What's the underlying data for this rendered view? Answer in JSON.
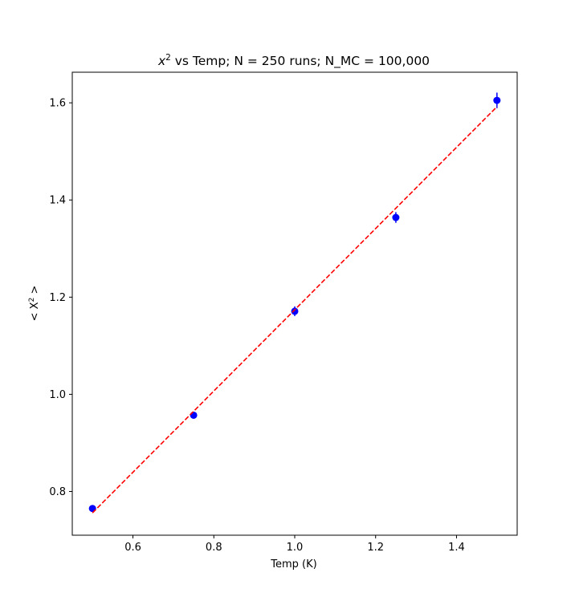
{
  "chart_data": {
    "type": "scatter",
    "title": {
      "prefix": "x",
      "superscript": "2",
      "suffix": " vs Temp; N = 250 runs; N_MC = 100,000"
    },
    "xlabel": "Temp (K)",
    "ylabel": {
      "prefix": "< X",
      "superscript": "2",
      "suffix": " >"
    },
    "xlim": [
      0.45,
      1.55
    ],
    "ylim": [
      0.71,
      1.663
    ],
    "x_ticks": [
      0.6,
      0.8,
      1.0,
      1.2,
      1.4
    ],
    "x_tick_labels": [
      "0.6",
      "0.8",
      "1.0",
      "1.2",
      "1.4"
    ],
    "y_ticks": [
      0.8,
      1.0,
      1.2,
      1.4,
      1.6
    ],
    "y_tick_labels": [
      "0.8",
      "1.0",
      "1.2",
      "1.4",
      "1.6"
    ],
    "grid": false,
    "series": [
      {
        "kind": "errorbar",
        "color": "#0000ff",
        "x": [
          0.5,
          0.75,
          1.0,
          1.25,
          1.5
        ],
        "y": [
          0.765,
          0.957,
          1.171,
          1.364,
          1.605
        ],
        "yerr": [
          0.007,
          0.006,
          0.01,
          0.011,
          0.016
        ]
      },
      {
        "kind": "fit-line",
        "color": "#ff0000",
        "linestyle": "dashed",
        "x": [
          0.5,
          1.5
        ],
        "y": [
          0.756,
          1.592
        ]
      }
    ]
  }
}
